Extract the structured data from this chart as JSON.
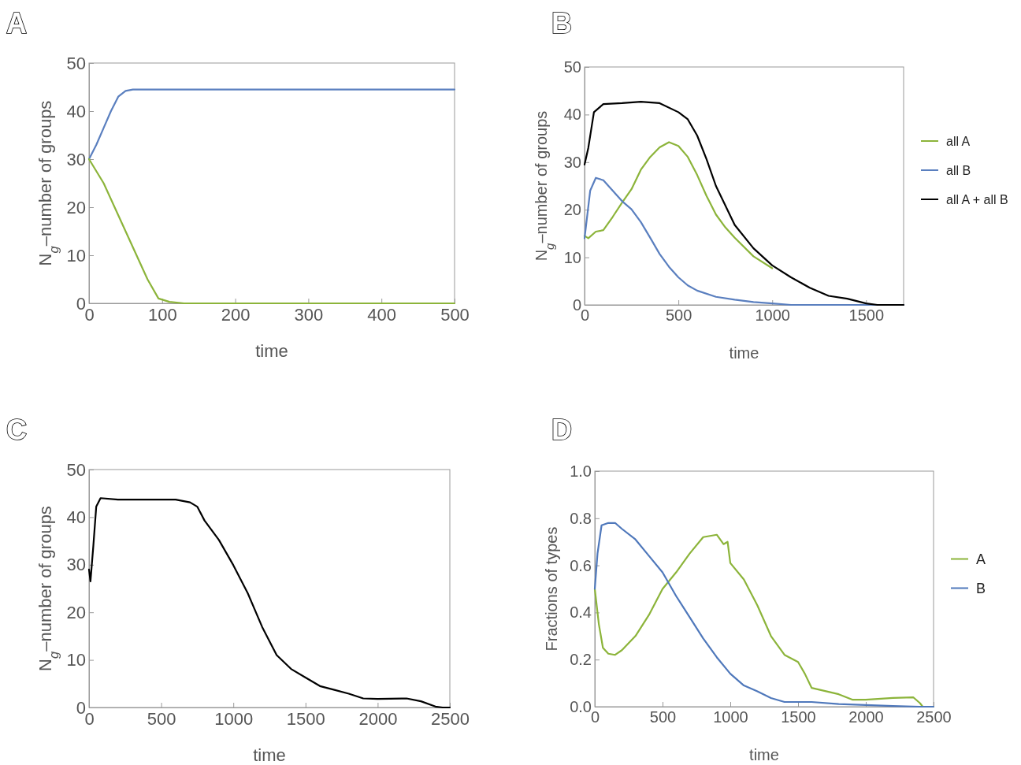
{
  "chart_data": [
    {
      "type": "line",
      "title": "A",
      "xlabel": "time",
      "ylabel": "N$_{g}$–number of groups",
      "xlim": [
        0,
        500
      ],
      "xticks": [
        0,
        100,
        200,
        300,
        400,
        500
      ],
      "ylim": [
        0,
        50
      ],
      "yticks": [
        0,
        10,
        20,
        30,
        40,
        50
      ],
      "grid": false,
      "legend": false,
      "series": [
        {
          "color": "#5a7fbf",
          "x": [
            0,
            10,
            20,
            30,
            40,
            50,
            60,
            100,
            200,
            300,
            400,
            500
          ],
          "values": [
            30,
            33,
            36.5,
            40,
            43,
            44.2,
            44.5,
            44.5,
            44.5,
            44.5,
            44.5,
            44.5
          ]
        },
        {
          "color": "#8cb43a",
          "x": [
            0,
            20,
            35,
            50,
            65,
            80,
            95,
            110,
            130,
            200,
            300,
            400,
            500
          ],
          "values": [
            30,
            25,
            20,
            15,
            10,
            5,
            1,
            0.3,
            0,
            0,
            0,
            0,
            0
          ]
        }
      ]
    },
    {
      "type": "line",
      "title": "B",
      "xlabel": "time",
      "ylabel": "N$_{g}$–number of groups",
      "xlim": [
        0,
        1700
      ],
      "xticks": [
        0,
        500,
        1000,
        1500
      ],
      "ylim": [
        0,
        50
      ],
      "yticks": [
        0,
        10,
        20,
        30,
        40,
        50
      ],
      "grid": false,
      "legend": "right",
      "series": [
        {
          "name": "all A",
          "color": "#8cb43a",
          "x": [
            0,
            20,
            60,
            100,
            150,
            200,
            250,
            300,
            350,
            400,
            450,
            500,
            550,
            600,
            650,
            700,
            750,
            800,
            900,
            1000
          ],
          "values": [
            14.5,
            14,
            15.4,
            15.7,
            18.5,
            21.5,
            24.3,
            28.4,
            31.1,
            33.1,
            34.2,
            33.4,
            31.1,
            27.3,
            22.9,
            19,
            16.3,
            14.1,
            10.2,
            7.7
          ]
        },
        {
          "name": "all B",
          "color": "#5a7fbf",
          "x": [
            0,
            30,
            60,
            100,
            150,
            200,
            250,
            300,
            350,
            400,
            450,
            500,
            550,
            600,
            700,
            800,
            900,
            1000,
            1100,
            1700
          ],
          "values": [
            14,
            24,
            26.7,
            26.2,
            24,
            21.8,
            20.1,
            17.4,
            14.1,
            10.7,
            8,
            5.8,
            4.1,
            3,
            1.7,
            1.1,
            0.6,
            0.3,
            0,
            0
          ]
        },
        {
          "name": "all A + all B",
          "color": "#000000",
          "x": [
            0,
            20,
            50,
            100,
            200,
            300,
            400,
            500,
            550,
            600,
            650,
            700,
            800,
            900,
            1000,
            1100,
            1200,
            1300,
            1400,
            1500,
            1560,
            1700
          ],
          "values": [
            29.5,
            33,
            40.5,
            42.2,
            42.4,
            42.7,
            42.4,
            40.5,
            39,
            35.6,
            30.6,
            25,
            16.8,
            11.9,
            8.3,
            5.8,
            3.6,
            1.9,
            1.3,
            0.3,
            0,
            0
          ]
        }
      ]
    },
    {
      "type": "line",
      "title": "C",
      "xlabel": "time",
      "ylabel": "N$_{g}$–number of groups",
      "xlim": [
        0,
        2500
      ],
      "xticks": [
        0,
        500,
        1000,
        1500,
        2000,
        2500
      ],
      "ylim": [
        0,
        50
      ],
      "yticks": [
        0,
        10,
        20,
        30,
        40,
        50
      ],
      "grid": false,
      "legend": false,
      "series": [
        {
          "color": "#000000",
          "x": [
            0,
            10,
            30,
            50,
            80,
            200,
            400,
            600,
            700,
            750,
            800,
            900,
            1000,
            1100,
            1200,
            1300,
            1400,
            1500,
            1600,
            1700,
            1800,
            1900,
            2000,
            2200,
            2300,
            2400,
            2450,
            2500
          ],
          "values": [
            29,
            26.5,
            34,
            42.2,
            44,
            43.7,
            43.7,
            43.7,
            43.1,
            42.2,
            39.3,
            35.2,
            29.9,
            24,
            16.9,
            11,
            8.1,
            6.3,
            4.5,
            3.7,
            2.9,
            1.9,
            1.8,
            1.9,
            1.3,
            0.2,
            0,
            0
          ]
        }
      ]
    },
    {
      "type": "line",
      "title": "D",
      "xlabel": "time",
      "ylabel": "Fractions of types",
      "xlim": [
        0,
        2500
      ],
      "xticks": [
        0,
        500,
        1000,
        1500,
        2000,
        2500
      ],
      "ylim": [
        0,
        1
      ],
      "yticks": [
        {
          "value": 0,
          "label": "0.0"
        },
        {
          "value": 0.2,
          "label": "0.2"
        },
        {
          "value": 0.4,
          "label": "0.4"
        },
        {
          "value": 0.6,
          "label": "0.6"
        },
        {
          "value": 0.8,
          "label": "0.8"
        },
        {
          "value": 1,
          "label": "1.0"
        }
      ],
      "grid": false,
      "legend": "right",
      "series": [
        {
          "name": "A",
          "color": "#8cb43a",
          "x": [
            0,
            30,
            60,
            100,
            150,
            200,
            300,
            400,
            500,
            600,
            700,
            800,
            900,
            950,
            980,
            1000,
            1100,
            1200,
            1300,
            1400,
            1500,
            1550,
            1600,
            1800,
            1900,
            2000,
            2200,
            2350,
            2400,
            2420,
            2500
          ],
          "values": [
            0.5,
            0.35,
            0.25,
            0.225,
            0.22,
            0.24,
            0.3,
            0.39,
            0.5,
            0.57,
            0.65,
            0.72,
            0.73,
            0.69,
            0.7,
            0.61,
            0.54,
            0.43,
            0.3,
            0.22,
            0.19,
            0.14,
            0.08,
            0.053,
            0.03,
            0.03,
            0.037,
            0.04,
            0.015,
            0,
            0
          ]
        },
        {
          "name": "B",
          "color": "#4f78bb",
          "x": [
            0,
            20,
            50,
            100,
            150,
            200,
            300,
            400,
            500,
            600,
            700,
            800,
            900,
            1000,
            1100,
            1200,
            1300,
            1400,
            1600,
            1800,
            2000,
            2200,
            2400,
            2500
          ],
          "values": [
            0.5,
            0.65,
            0.77,
            0.78,
            0.78,
            0.755,
            0.71,
            0.64,
            0.57,
            0.47,
            0.38,
            0.29,
            0.21,
            0.14,
            0.09,
            0.065,
            0.037,
            0.02,
            0.02,
            0.011,
            0.007,
            0.003,
            0,
            0
          ]
        }
      ]
    }
  ]
}
